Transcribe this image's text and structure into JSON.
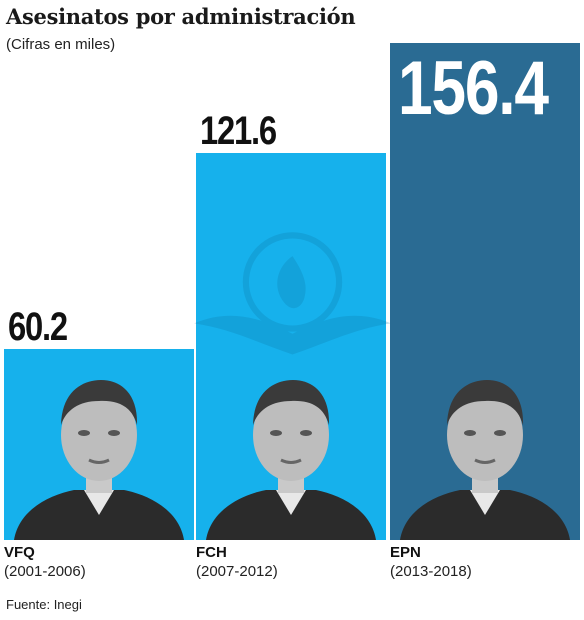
{
  "header": {
    "title": "Asesinatos por administración",
    "subtitle": "(Cifras en miles)"
  },
  "footer": {
    "source": "Fuente: Inegi"
  },
  "colors": {
    "bar_light": "#16b1ec",
    "bar_dark": "#2a6b93",
    "value_dark_text": "#111111",
    "value_light_text": "#ffffff"
  },
  "chart_data": {
    "type": "bar",
    "title": "Asesinatos por administración",
    "subtitle": "(Cifras en miles)",
    "xlabel": "",
    "ylabel": "",
    "categories": [
      "VFQ",
      "FCH",
      "EPN"
    ],
    "periods": [
      "(2001-2006)",
      "(2007-2012)",
      "(2013-2018)"
    ],
    "values": [
      60.2,
      121.6,
      156.4
    ],
    "value_labels": [
      "60.2",
      "121.6",
      "156.4"
    ],
    "bar_colors": [
      "#16b1ec",
      "#16b1ec",
      "#2a6b93"
    ],
    "ylim": [
      0,
      165
    ],
    "grid": false,
    "legend": "none"
  },
  "icons": {
    "photos": [
      "portrait-vfq-icon",
      "portrait-fch-icon",
      "portrait-epn-icon"
    ],
    "watermark": "eagle-emblem-icon"
  }
}
